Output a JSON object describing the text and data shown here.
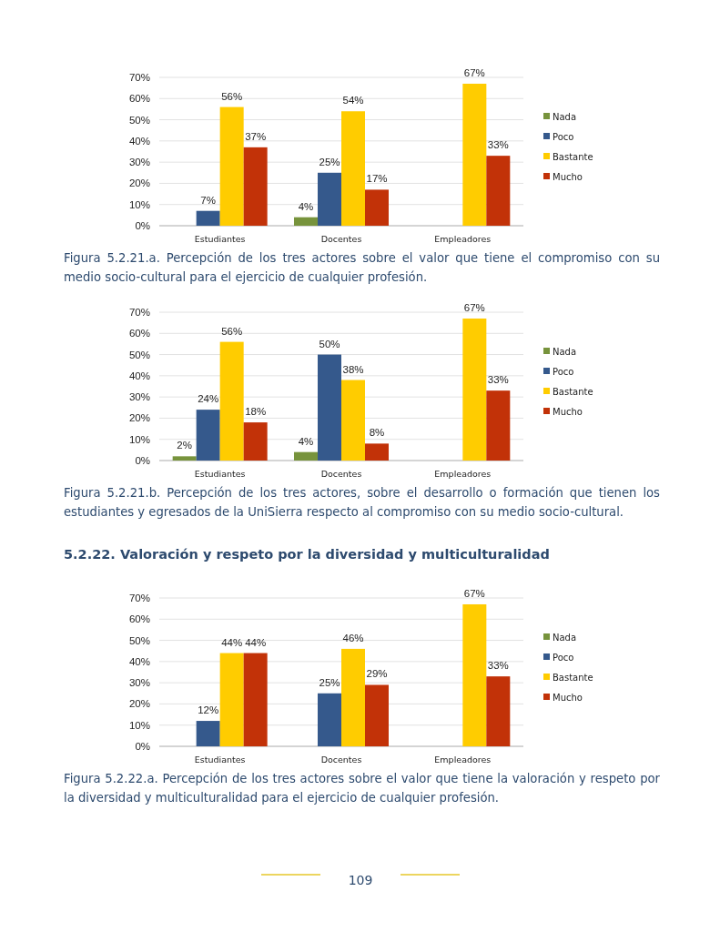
{
  "chart_data": [
    {
      "type": "bar",
      "categories": [
        "Estudiantes",
        "Docentes",
        "Empleadores"
      ],
      "series": [
        {
          "name": "Nada",
          "color": "#77933c",
          "values": [
            null,
            4,
            null
          ],
          "value_labels": [
            null,
            "4%",
            null
          ]
        },
        {
          "name": "Poco",
          "color": "#35598c",
          "values": [
            7,
            25,
            null
          ],
          "value_labels": [
            "7%",
            "25%",
            null
          ]
        },
        {
          "name": "Bastante",
          "color": "#ffcc00",
          "values": [
            56,
            54,
            67
          ],
          "value_labels": [
            "56%",
            "54%",
            "67%"
          ]
        },
        {
          "name": "Mucho",
          "color": "#c23208",
          "values": [
            37,
            17,
            33
          ],
          "value_labels": [
            "37%",
            "17%",
            "33%"
          ]
        }
      ],
      "ylim": [
        0,
        70
      ],
      "yticks": [
        {
          "value": 0,
          "label": "0%"
        },
        {
          "value": 10,
          "label": "10%"
        },
        {
          "value": 20,
          "label": "20%"
        },
        {
          "value": 30,
          "label": "30%"
        },
        {
          "value": 40,
          "label": "40%"
        },
        {
          "value": 50,
          "label": "50%"
        },
        {
          "value": 60,
          "label": "60%"
        },
        {
          "value": 70,
          "label": "70%"
        }
      ],
      "grid": "y",
      "legend": "right",
      "annotations": [
        "Figura 5.2.21.a. Percepción de los tres actores sobre el valor que tiene el compromiso con su medio socio-cultural para el ejercicio de cualquier profesión."
      ]
    },
    {
      "type": "bar",
      "categories": [
        "Estudiantes",
        "Docentes",
        "Empleadores"
      ],
      "series": [
        {
          "name": "Nada",
          "color": "#77933c",
          "values": [
            2,
            4,
            null
          ],
          "value_labels": [
            "2%",
            "4%",
            null
          ]
        },
        {
          "name": "Poco",
          "color": "#35598c",
          "values": [
            24,
            50,
            null
          ],
          "value_labels": [
            "24%",
            "50%",
            null
          ]
        },
        {
          "name": "Bastante",
          "color": "#ffcc00",
          "values": [
            56,
            38,
            67
          ],
          "value_labels": [
            "56%",
            "38%",
            "67%"
          ]
        },
        {
          "name": "Mucho",
          "color": "#c23208",
          "values": [
            18,
            8,
            33
          ],
          "value_labels": [
            "18%",
            "8%",
            "33%"
          ]
        }
      ],
      "ylim": [
        0,
        70
      ],
      "yticks": [
        {
          "value": 0,
          "label": "0%"
        },
        {
          "value": 10,
          "label": "10%"
        },
        {
          "value": 20,
          "label": "20%"
        },
        {
          "value": 30,
          "label": "30%"
        },
        {
          "value": 40,
          "label": "40%"
        },
        {
          "value": 50,
          "label": "50%"
        },
        {
          "value": 60,
          "label": "60%"
        },
        {
          "value": 70,
          "label": "70%"
        }
      ],
      "grid": "y",
      "legend": "right",
      "annotations": [
        "Figura 5.2.21.b. Percepción de los tres actores, sobre el desarrollo o formación que tienen los estudiantes y egresados de la UniSierra respecto al compromiso con su medio socio-cultural."
      ]
    },
    {
      "type": "bar",
      "title": "5.2.22. Valoración y respeto por la diversidad y multiculturalidad",
      "categories": [
        "Estudiantes",
        "Docentes",
        "Empleadores"
      ],
      "series": [
        {
          "name": "Nada",
          "color": "#77933c",
          "values": [
            null,
            null,
            null
          ],
          "value_labels": [
            null,
            null,
            null
          ]
        },
        {
          "name": "Poco",
          "color": "#35598c",
          "values": [
            12,
            25,
            null
          ],
          "value_labels": [
            "12%",
            "25%",
            null
          ]
        },
        {
          "name": "Bastante",
          "color": "#ffcc00",
          "values": [
            44,
            46,
            67
          ],
          "value_labels": [
            "44%",
            "46%",
            "67%"
          ]
        },
        {
          "name": "Mucho",
          "color": "#c23208",
          "values": [
            44,
            29,
            33
          ],
          "value_labels": [
            "44%",
            "29%",
            "33%"
          ]
        }
      ],
      "ylim": [
        0,
        70
      ],
      "yticks": [
        {
          "value": 0,
          "label": "0%"
        },
        {
          "value": 10,
          "label": "10%"
        },
        {
          "value": 20,
          "label": "20%"
        },
        {
          "value": 30,
          "label": "30%"
        },
        {
          "value": 40,
          "label": "40%"
        },
        {
          "value": 50,
          "label": "50%"
        },
        {
          "value": 60,
          "label": "60%"
        },
        {
          "value": 70,
          "label": "70%"
        }
      ],
      "grid": "y",
      "legend": "right",
      "annotations": [
        "Figura 5.2.22.a. Percepción de los tres actores sobre el valor que tiene la valoración y respeto por la diversidad y multiculturalidad para el ejercicio de cualquier profesión.",
        "109"
      ]
    }
  ]
}
